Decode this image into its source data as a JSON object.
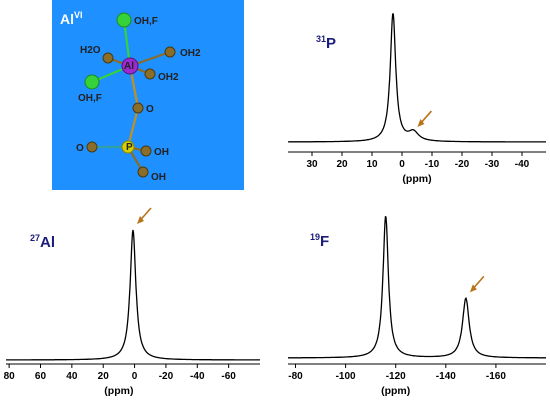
{
  "structure": {
    "title_base": "Al",
    "title_sup": "VI",
    "labels": {
      "f_top": "OH,F",
      "h2o_left": "H2O",
      "oh2_right": "OH2",
      "al": "Al",
      "oh2_lower": "OH2",
      "f_left": "OH,F",
      "o_bridge": "O",
      "o_left": "O",
      "p": "P",
      "oh_right": "OH",
      "oh_bottom": "OH"
    },
    "colors": {
      "background": "#1e90ff",
      "al": "#9b2bd1",
      "f": "#36d23a",
      "o": "#8a6d28",
      "p": "#d6d000"
    }
  },
  "arrow_color": "#b8741a",
  "label_color": "#1c1c7a",
  "chart_data": [
    {
      "id": "p31",
      "type": "line",
      "nucleus_sup": "31",
      "nucleus_base": "P",
      "xlabel": "(ppm)",
      "xlim": [
        38,
        -48
      ],
      "x_reversed": true,
      "ticks": [
        30,
        20,
        10,
        0,
        -10,
        -20,
        -30,
        -40
      ],
      "peaks": [
        {
          "x": 3,
          "height": 1.0,
          "width": 1.1
        },
        {
          "x": -3.8,
          "height": 0.07,
          "width": 2.0
        }
      ],
      "arrow_at": -3.8
    },
    {
      "id": "al27",
      "type": "line",
      "nucleus_sup": "27",
      "nucleus_base": "Al",
      "xlabel": "(ppm)",
      "xlim": [
        82,
        -80
      ],
      "x_reversed": true,
      "ticks": [
        80,
        60,
        40,
        20,
        0,
        -20,
        -40,
        -60
      ],
      "peaks": [
        {
          "x": 1,
          "height": 1.0,
          "width": 2.2
        }
      ],
      "arrow_at": 1
    },
    {
      "id": "f19",
      "type": "line",
      "nucleus_sup": "19",
      "nucleus_base": "F",
      "xlabel": "(ppm)",
      "xlim": [
        -77,
        -180
      ],
      "x_reversed": true,
      "ticks": [
        -80,
        -100,
        -120,
        -140,
        -160
      ],
      "peaks": [
        {
          "x": -116,
          "height": 1.0,
          "width": 1.3
        },
        {
          "x": -148,
          "height": 0.42,
          "width": 1.6
        }
      ],
      "arrow_at": -148
    }
  ]
}
